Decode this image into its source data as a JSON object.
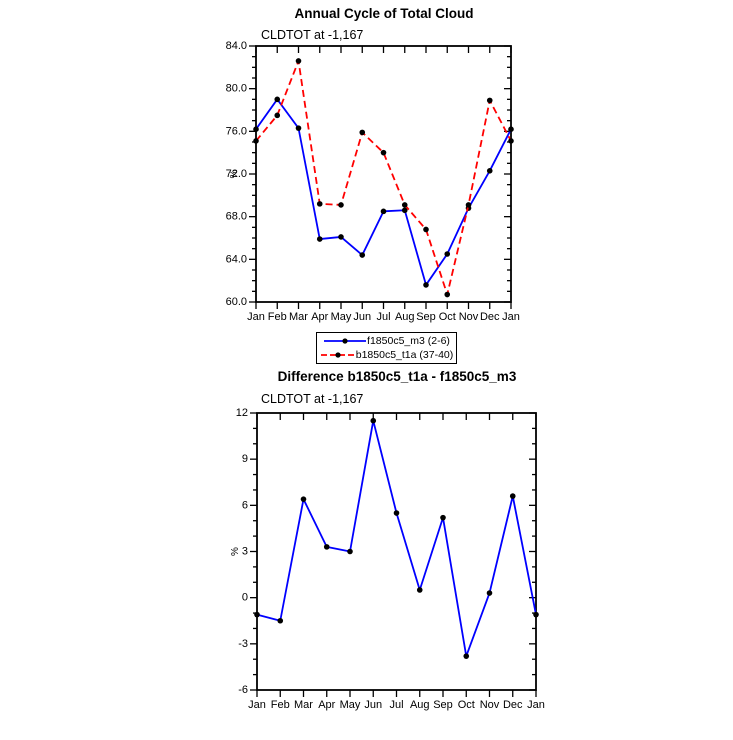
{
  "page_background": "#ffffff",
  "legend": {
    "items": [
      {
        "label": "f1850c5_m3 (2-6)",
        "color": "#0000ff",
        "dash": "solid"
      },
      {
        "label": "b1850c5_t1a (37-40)",
        "color": "#ff0000",
        "dash": "dashed"
      }
    ]
  },
  "chart_data": [
    {
      "type": "line",
      "title": "Annual Cycle of Total Cloud",
      "subtitle": "CLDTOT at -1,167",
      "ylabel": "%",
      "categories": [
        "Jan",
        "Feb",
        "Mar",
        "Apr",
        "May",
        "Jun",
        "Jul",
        "Aug",
        "Sep",
        "Oct",
        "Nov",
        "Dec",
        "Jan"
      ],
      "series": [
        {
          "name": "f1850c5_m3 (2-6)",
          "color": "#0000ff",
          "dash": "solid",
          "values": [
            76.2,
            79.0,
            76.3,
            65.9,
            66.1,
            64.4,
            68.5,
            68.6,
            61.6,
            64.5,
            68.8,
            72.3,
            76.2
          ]
        },
        {
          "name": "b1850c5_t1a (37-40)",
          "color": "#ff0000",
          "dash": "dashed",
          "values": [
            75.1,
            77.5,
            82.6,
            69.2,
            69.1,
            75.9,
            74.0,
            69.1,
            66.8,
            60.7,
            69.1,
            78.9,
            75.1
          ]
        }
      ],
      "marker": {
        "shape": "circle",
        "color": "#000000"
      },
      "ylim": [
        60,
        84
      ],
      "yticks": [
        84,
        80,
        76,
        72,
        68,
        64,
        60
      ],
      "ytick_labels": [
        "84.0",
        "80.0",
        "76.0",
        "72.0",
        "68.0",
        "64.0",
        "60.0"
      ],
      "ytick_minor_step": 1,
      "grid": false,
      "legend_position": "below"
    },
    {
      "type": "line",
      "title": "Difference b1850c5_t1a - f1850c5_m3",
      "subtitle": "CLDTOT at -1,167",
      "ylabel": "%",
      "categories": [
        "Jan",
        "Feb",
        "Mar",
        "Apr",
        "May",
        "Jun",
        "Jul",
        "Aug",
        "Sep",
        "Oct",
        "Nov",
        "Dec",
        "Jan"
      ],
      "series": [
        {
          "name": "difference",
          "color": "#0000ff",
          "dash": "solid",
          "values": [
            -1.1,
            -1.5,
            6.4,
            3.3,
            3.0,
            11.5,
            5.5,
            0.5,
            5.2,
            -3.8,
            0.3,
            6.6,
            -1.1
          ]
        }
      ],
      "marker": {
        "shape": "circle",
        "color": "#000000"
      },
      "ylim": [
        -6,
        12
      ],
      "yticks": [
        12,
        9,
        6,
        3,
        0,
        -3,
        -6
      ],
      "ytick_labels": [
        "12",
        "9",
        "6",
        "3",
        "0",
        "-3",
        "-6"
      ],
      "ytick_minor_step": 1,
      "grid": false,
      "legend_position": "none"
    }
  ]
}
